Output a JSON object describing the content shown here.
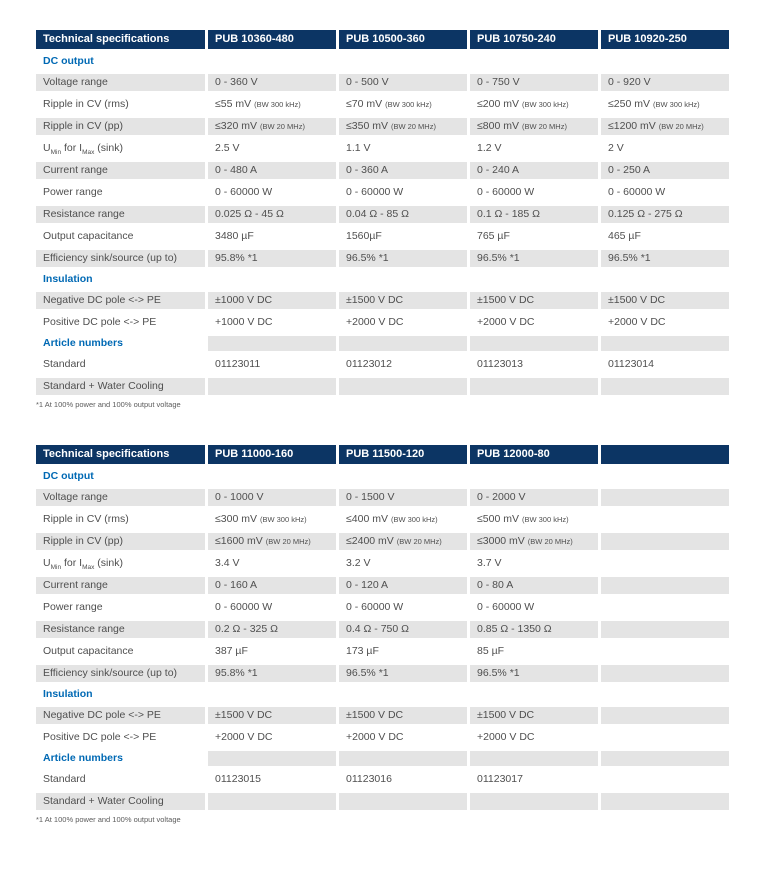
{
  "colors": {
    "header_bg": "#0c3564",
    "section_text": "#0069b4",
    "stripe": "#e4e4e4",
    "body_text": "#4f4f4f"
  },
  "tables": [
    {
      "header": [
        "Technical specifications",
        "PUB 10360-480",
        "PUB 10500-360",
        "PUB 10750-240",
        "PUB 10920-250"
      ],
      "rows": [
        {
          "type": "section",
          "label": "DC output"
        },
        {
          "type": "data",
          "label": "Voltage range",
          "cells": [
            {
              "v": "0 - 360 V"
            },
            {
              "v": "0 - 500 V"
            },
            {
              "v": "0 - 750 V"
            },
            {
              "v": "0 - 920 V"
            }
          ]
        },
        {
          "type": "data",
          "label": "Ripple in CV (rms)",
          "cells": [
            {
              "v": "≤55 mV",
              "note": "(BW 300 kHz)"
            },
            {
              "v": "≤70 mV",
              "note": "(BW 300 kHz)"
            },
            {
              "v": "≤200 mV",
              "note": "(BW 300 kHz)"
            },
            {
              "v": "≤250 mV",
              "note": "(BW 300 kHz)"
            }
          ]
        },
        {
          "type": "data",
          "label": "Ripple in CV (pp)",
          "cells": [
            {
              "v": "≤320 mV",
              "note": "(BW 20 MHz)"
            },
            {
              "v": "≤350 mV",
              "note": "(BW 20 MHz)"
            },
            {
              "v": "≤800 mV",
              "note": "(BW 20 MHz)"
            },
            {
              "v": "≤1200 mV",
              "note": "(BW 20 MHz)"
            }
          ]
        },
        {
          "type": "data",
          "label": "U_Min for I_Max (sink)",
          "label_parts": [
            {
              "t": "U"
            },
            {
              "t": "Min",
              "sub": true
            },
            {
              "t": " for I"
            },
            {
              "t": "Max",
              "sub": true
            },
            {
              "t": " (sink)"
            }
          ],
          "cells": [
            {
              "v": "2.5 V"
            },
            {
              "v": "1.1 V"
            },
            {
              "v": "1.2 V"
            },
            {
              "v": "2 V"
            }
          ]
        },
        {
          "type": "data",
          "label": "Current range",
          "cells": [
            {
              "v": "0 - 480 A"
            },
            {
              "v": "0 - 360 A"
            },
            {
              "v": "0 - 240 A"
            },
            {
              "v": "0 - 250 A"
            }
          ]
        },
        {
          "type": "data",
          "label": "Power range",
          "cells": [
            {
              "v": "0 - 60000 W"
            },
            {
              "v": "0 - 60000 W"
            },
            {
              "v": "0 - 60000 W"
            },
            {
              "v": "0 - 60000 W"
            }
          ]
        },
        {
          "type": "data",
          "label": "Resistance range",
          "cells": [
            {
              "v": "0.025 Ω - 45 Ω"
            },
            {
              "v": "0.04 Ω - 85 Ω"
            },
            {
              "v": "0.1 Ω - 185 Ω"
            },
            {
              "v": "0.125 Ω - 275 Ω"
            }
          ]
        },
        {
          "type": "data",
          "label": "Output capacitance",
          "cells": [
            {
              "v": "3480 µF"
            },
            {
              "v": "1560µF"
            },
            {
              "v": "765 µF"
            },
            {
              "v": "465 µF"
            }
          ]
        },
        {
          "type": "data",
          "label": "Efficiency sink/source (up to)",
          "cells": [
            {
              "v": "95.8% *1"
            },
            {
              "v": "96.5% *1"
            },
            {
              "v": "96.5% *1"
            },
            {
              "v": "96.5% *1"
            }
          ]
        },
        {
          "type": "section",
          "label": "Insulation"
        },
        {
          "type": "data",
          "label": "Negative DC pole <-> PE",
          "cells": [
            {
              "v": "±1000 V DC"
            },
            {
              "v": "±1500 V DC"
            },
            {
              "v": "±1500 V DC"
            },
            {
              "v": "±1500 V DC"
            }
          ]
        },
        {
          "type": "data",
          "label": "Positive DC pole <-> PE",
          "cells": [
            {
              "v": "+1000 V DC"
            },
            {
              "v": "+2000 V DC"
            },
            {
              "v": "+2000 V DC"
            },
            {
              "v": "+2000 V DC"
            }
          ]
        },
        {
          "type": "section",
          "label": "Article numbers"
        },
        {
          "type": "data",
          "label": "Standard",
          "cells": [
            {
              "v": "01123011"
            },
            {
              "v": "01123012"
            },
            {
              "v": "01123013"
            },
            {
              "v": "01123014"
            }
          ]
        },
        {
          "type": "data",
          "label": "Standard + Water Cooling",
          "cells": [
            {
              "v": ""
            },
            {
              "v": ""
            },
            {
              "v": ""
            },
            {
              "v": ""
            }
          ]
        }
      ],
      "footnote": "*1 At 100% power and 100% output voltage"
    },
    {
      "header": [
        "Technical specifications",
        "PUB 11000-160",
        "PUB 11500-120",
        "PUB 12000-80",
        ""
      ],
      "rows": [
        {
          "type": "section",
          "label": "DC output"
        },
        {
          "type": "data",
          "label": "Voltage range",
          "cells": [
            {
              "v": "0 - 1000 V"
            },
            {
              "v": "0 - 1500 V"
            },
            {
              "v": "0 - 2000 V"
            },
            {
              "v": ""
            }
          ]
        },
        {
          "type": "data",
          "label": "Ripple in CV (rms)",
          "cells": [
            {
              "v": "≤300 mV",
              "note": "(BW 300 kHz)"
            },
            {
              "v": "≤400 mV",
              "note": "(BW 300 kHz)"
            },
            {
              "v": "≤500 mV",
              "note": "(BW 300 kHz)"
            },
            {
              "v": ""
            }
          ]
        },
        {
          "type": "data",
          "label": "Ripple in CV (pp)",
          "cells": [
            {
              "v": "≤1600 mV",
              "note": "(BW 20 MHz)"
            },
            {
              "v": "≤2400 mV",
              "note": "(BW 20 MHz)"
            },
            {
              "v": "≤3000 mV",
              "note": "(BW 20 MHz)"
            },
            {
              "v": ""
            }
          ]
        },
        {
          "type": "data",
          "label": "U_Min for I_Max (sink)",
          "label_parts": [
            {
              "t": "U"
            },
            {
              "t": "Min",
              "sub": true
            },
            {
              "t": " for I"
            },
            {
              "t": "Max",
              "sub": true
            },
            {
              "t": " (sink)"
            }
          ],
          "cells": [
            {
              "v": "3.4 V"
            },
            {
              "v": "3.2 V"
            },
            {
              "v": "3.7 V"
            },
            {
              "v": ""
            }
          ]
        },
        {
          "type": "data",
          "label": "Current range",
          "cells": [
            {
              "v": "0 - 160 A"
            },
            {
              "v": "0 - 120 A"
            },
            {
              "v": "0 - 80 A"
            },
            {
              "v": ""
            }
          ]
        },
        {
          "type": "data",
          "label": "Power range",
          "cells": [
            {
              "v": "0 - 60000 W"
            },
            {
              "v": "0 - 60000 W"
            },
            {
              "v": "0 - 60000 W"
            },
            {
              "v": ""
            }
          ]
        },
        {
          "type": "data",
          "label": "Resistance range",
          "cells": [
            {
              "v": "0.2 Ω - 325 Ω"
            },
            {
              "v": "0.4 Ω - 750 Ω"
            },
            {
              "v": "0.85 Ω - 1350 Ω"
            },
            {
              "v": ""
            }
          ]
        },
        {
          "type": "data",
          "label": "Output capacitance",
          "cells": [
            {
              "v": "387 µF"
            },
            {
              "v": "173 µF"
            },
            {
              "v": "85 µF"
            },
            {
              "v": ""
            }
          ]
        },
        {
          "type": "data",
          "label": "Efficiency sink/source (up to)",
          "cells": [
            {
              "v": "95.8% *1"
            },
            {
              "v": "96.5% *1"
            },
            {
              "v": "96.5% *1"
            },
            {
              "v": ""
            }
          ]
        },
        {
          "type": "section",
          "label": "Insulation"
        },
        {
          "type": "data",
          "label": "Negative DC pole <-> PE",
          "cells": [
            {
              "v": "±1500 V DC"
            },
            {
              "v": "±1500 V DC"
            },
            {
              "v": "±1500 V DC"
            },
            {
              "v": ""
            }
          ]
        },
        {
          "type": "data",
          "label": "Positive DC pole <-> PE",
          "cells": [
            {
              "v": "+2000 V DC"
            },
            {
              "v": "+2000 V DC"
            },
            {
              "v": "+2000 V DC"
            },
            {
              "v": ""
            }
          ]
        },
        {
          "type": "section",
          "label": "Article numbers"
        },
        {
          "type": "data",
          "label": "Standard",
          "cells": [
            {
              "v": "01123015"
            },
            {
              "v": "01123016"
            },
            {
              "v": "01123017"
            },
            {
              "v": ""
            }
          ]
        },
        {
          "type": "data",
          "label": "Standard + Water Cooling",
          "cells": [
            {
              "v": ""
            },
            {
              "v": ""
            },
            {
              "v": ""
            },
            {
              "v": ""
            }
          ]
        }
      ],
      "footnote": "*1 At 100% power and 100% output voltage"
    }
  ]
}
